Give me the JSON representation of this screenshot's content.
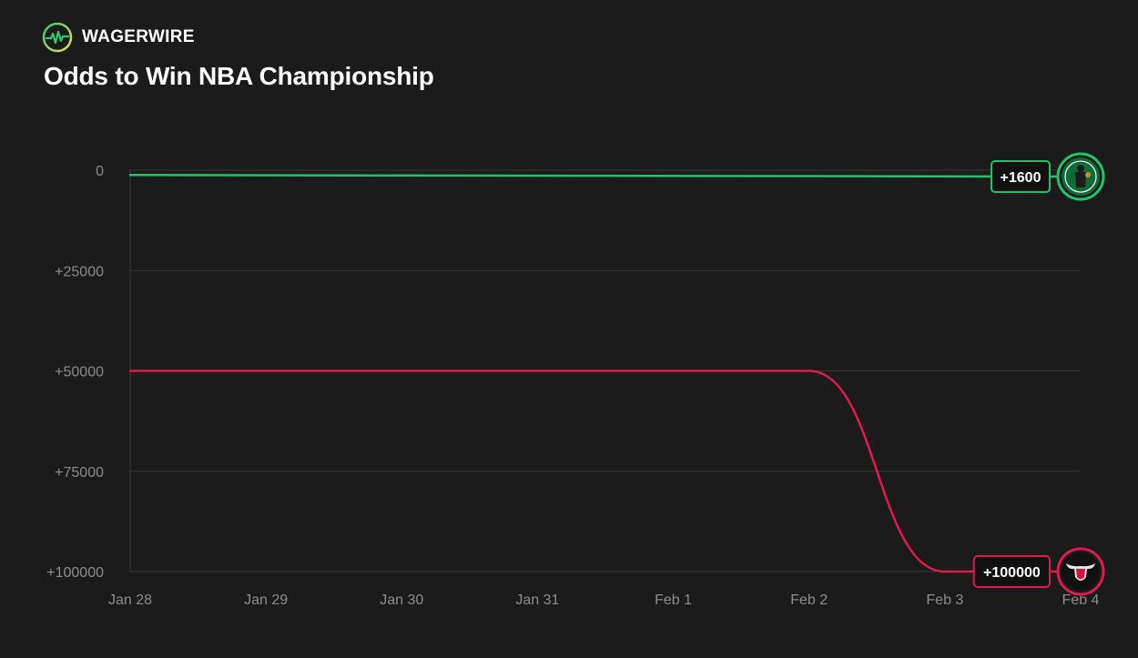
{
  "brand": {
    "name": "WAGERWIRE",
    "accent": "#2ecc71"
  },
  "chart_data": {
    "type": "line",
    "title": "Odds to Win NBA Championship",
    "xlabel": "",
    "ylabel": "",
    "x": [
      "Jan 28",
      "Jan 29",
      "Jan 30",
      "Jan 31",
      "Feb 1",
      "Feb 2",
      "Feb 3",
      "Feb 4"
    ],
    "y_ticks": [
      "0",
      "+25000",
      "+50000",
      "+75000",
      "+100000"
    ],
    "y_tick_values": [
      0,
      25000,
      50000,
      75000,
      100000
    ],
    "ylim": [
      0,
      100000
    ],
    "y_inverted": true,
    "grid": true,
    "series": [
      {
        "color": "#1fc46a",
        "end_label": "+1600",
        "points": [
          [
            "Jan 28",
            1200
          ],
          [
            "Feb 4",
            1600
          ]
        ],
        "logo_icon": "celtics-logo-icon"
      },
      {
        "color": "#e0194f",
        "end_label": "+100000",
        "points": [
          [
            "Jan 28",
            50000
          ],
          [
            "Feb 2",
            50000
          ],
          [
            "Feb 3",
            100000
          ],
          [
            "Feb 4",
            100000
          ]
        ],
        "logo_icon": "bulls-logo-icon"
      }
    ]
  }
}
